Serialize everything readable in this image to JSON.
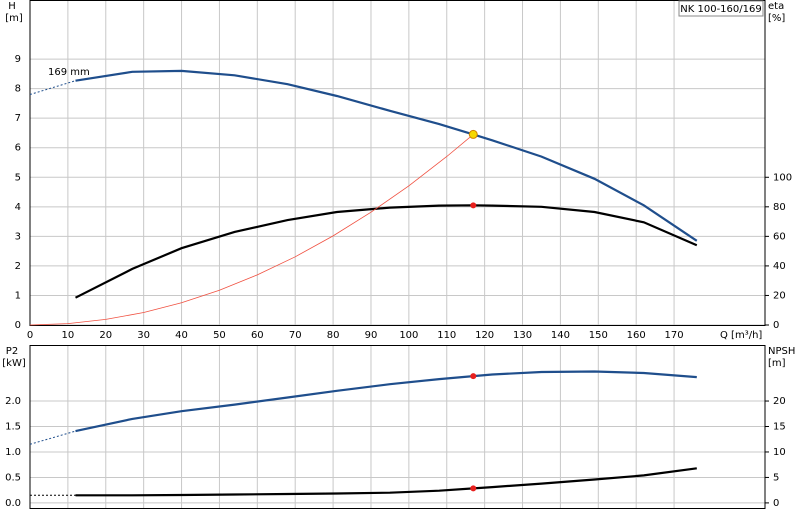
{
  "chart_data": [
    {
      "type": "line",
      "title": "NK 100-160/169",
      "y_label": "H",
      "y_unit": "[m]",
      "y2_label": "eta",
      "y2_unit": "[%]",
      "x_label": "Q [m³/h]",
      "annotation": "169 mm",
      "xlim": [
        0,
        194
      ],
      "xticks": [
        0,
        10,
        20,
        30,
        40,
        50,
        60,
        70,
        80,
        90,
        100,
        110,
        120,
        130,
        140,
        150,
        160,
        170
      ],
      "show_xtick_labels": true,
      "ylim": [
        0,
        11
      ],
      "yticks": [
        0,
        1,
        2,
        3,
        4,
        5,
        6,
        7,
        8,
        9
      ],
      "y2lim": [
        0,
        220
      ],
      "y2ticks": [
        0,
        20,
        40,
        60,
        80,
        100
      ],
      "grid": true,
      "series": [
        {
          "color": "#1f4e8c",
          "dashed": true,
          "x": [
            0,
            12
          ],
          "values": [
            7.8,
            8.27
          ]
        },
        {
          "color": "#1f4e8c",
          "x": [
            12,
            27,
            40,
            54,
            68,
            81,
            95,
            108,
            117,
            122,
            135,
            149,
            162,
            176
          ],
          "values": [
            8.27,
            8.57,
            8.6,
            8.45,
            8.15,
            7.75,
            7.25,
            6.8,
            6.45,
            6.25,
            5.7,
            4.95,
            4.05,
            2.85
          ]
        },
        {
          "color": "#000000",
          "axis": "y2",
          "x": [
            12,
            27,
            40,
            54,
            68,
            81,
            95,
            108,
            117,
            122,
            135,
            149,
            162,
            176
          ],
          "values": [
            18.5,
            38,
            52,
            63,
            71,
            76.5,
            79.5,
            80.8,
            81,
            80.8,
            80,
            76.5,
            69.5,
            54
          ]
        },
        {
          "color": "#f05040",
          "thin": true,
          "x": [
            0,
            10,
            20,
            30,
            40,
            50,
            60,
            70,
            80,
            90,
            100,
            110,
            117
          ],
          "values": [
            0,
            0.047,
            0.188,
            0.424,
            0.754,
            1.178,
            1.696,
            2.309,
            3.016,
            3.817,
            4.712,
            5.702,
            6.45
          ]
        }
      ],
      "points": [
        {
          "x": 117,
          "y": 6.45,
          "color": "#f5d800"
        },
        {
          "x": 117,
          "y": 81,
          "axis": "y2",
          "color": "#e8201e"
        }
      ]
    },
    {
      "type": "line",
      "y_label": "P2",
      "y_unit": "[kW]",
      "y2_label": "NPSH",
      "y2_unit": "[m]",
      "xlim": [
        0,
        194
      ],
      "xticks": [
        0,
        10,
        20,
        30,
        40,
        50,
        60,
        70,
        80,
        90,
        100,
        110,
        120,
        130,
        140,
        150,
        160,
        170
      ],
      "show_xtick_labels": false,
      "ylim": [
        -0.1,
        3.1
      ],
      "yticks": [
        {
          "value": 0,
          "label": "0.0"
        },
        0.5,
        {
          "value": 1,
          "label": "1.0"
        },
        1.5,
        {
          "value": 2,
          "label": "2.0"
        }
      ],
      "y2lim": [
        -1,
        31
      ],
      "y2ticks": [
        0,
        5,
        10,
        15,
        20
      ],
      "grid": true,
      "series": [
        {
          "color": "#1f4e8c",
          "dashed": true,
          "x": [
            0,
            12
          ],
          "values": [
            1.15,
            1.41
          ]
        },
        {
          "color": "#1f4e8c",
          "x": [
            12,
            27,
            40,
            54,
            68,
            81,
            95,
            108,
            117,
            122,
            135,
            149,
            162,
            176
          ],
          "values": [
            1.41,
            1.65,
            1.8,
            1.93,
            2.07,
            2.2,
            2.33,
            2.43,
            2.49,
            2.52,
            2.57,
            2.58,
            2.55,
            2.47
          ]
        },
        {
          "color": "#000000",
          "dashed": true,
          "axis": "y2",
          "x": [
            0,
            12
          ],
          "values": [
            1.5,
            1.5
          ]
        },
        {
          "color": "#000000",
          "axis": "y2",
          "x": [
            12,
            27,
            40,
            54,
            68,
            81,
            95,
            108,
            117,
            122,
            135,
            149,
            162,
            176
          ],
          "values": [
            1.5,
            1.5,
            1.55,
            1.65,
            1.75,
            1.85,
            2.0,
            2.4,
            2.85,
            3.1,
            3.8,
            4.6,
            5.4,
            6.8
          ]
        }
      ],
      "points": [
        {
          "x": 117,
          "y": 2.49,
          "color": "#e8201e"
        },
        {
          "x": 117,
          "y": 2.85,
          "axis": "y2",
          "color": "#e8201e"
        }
      ]
    }
  ]
}
